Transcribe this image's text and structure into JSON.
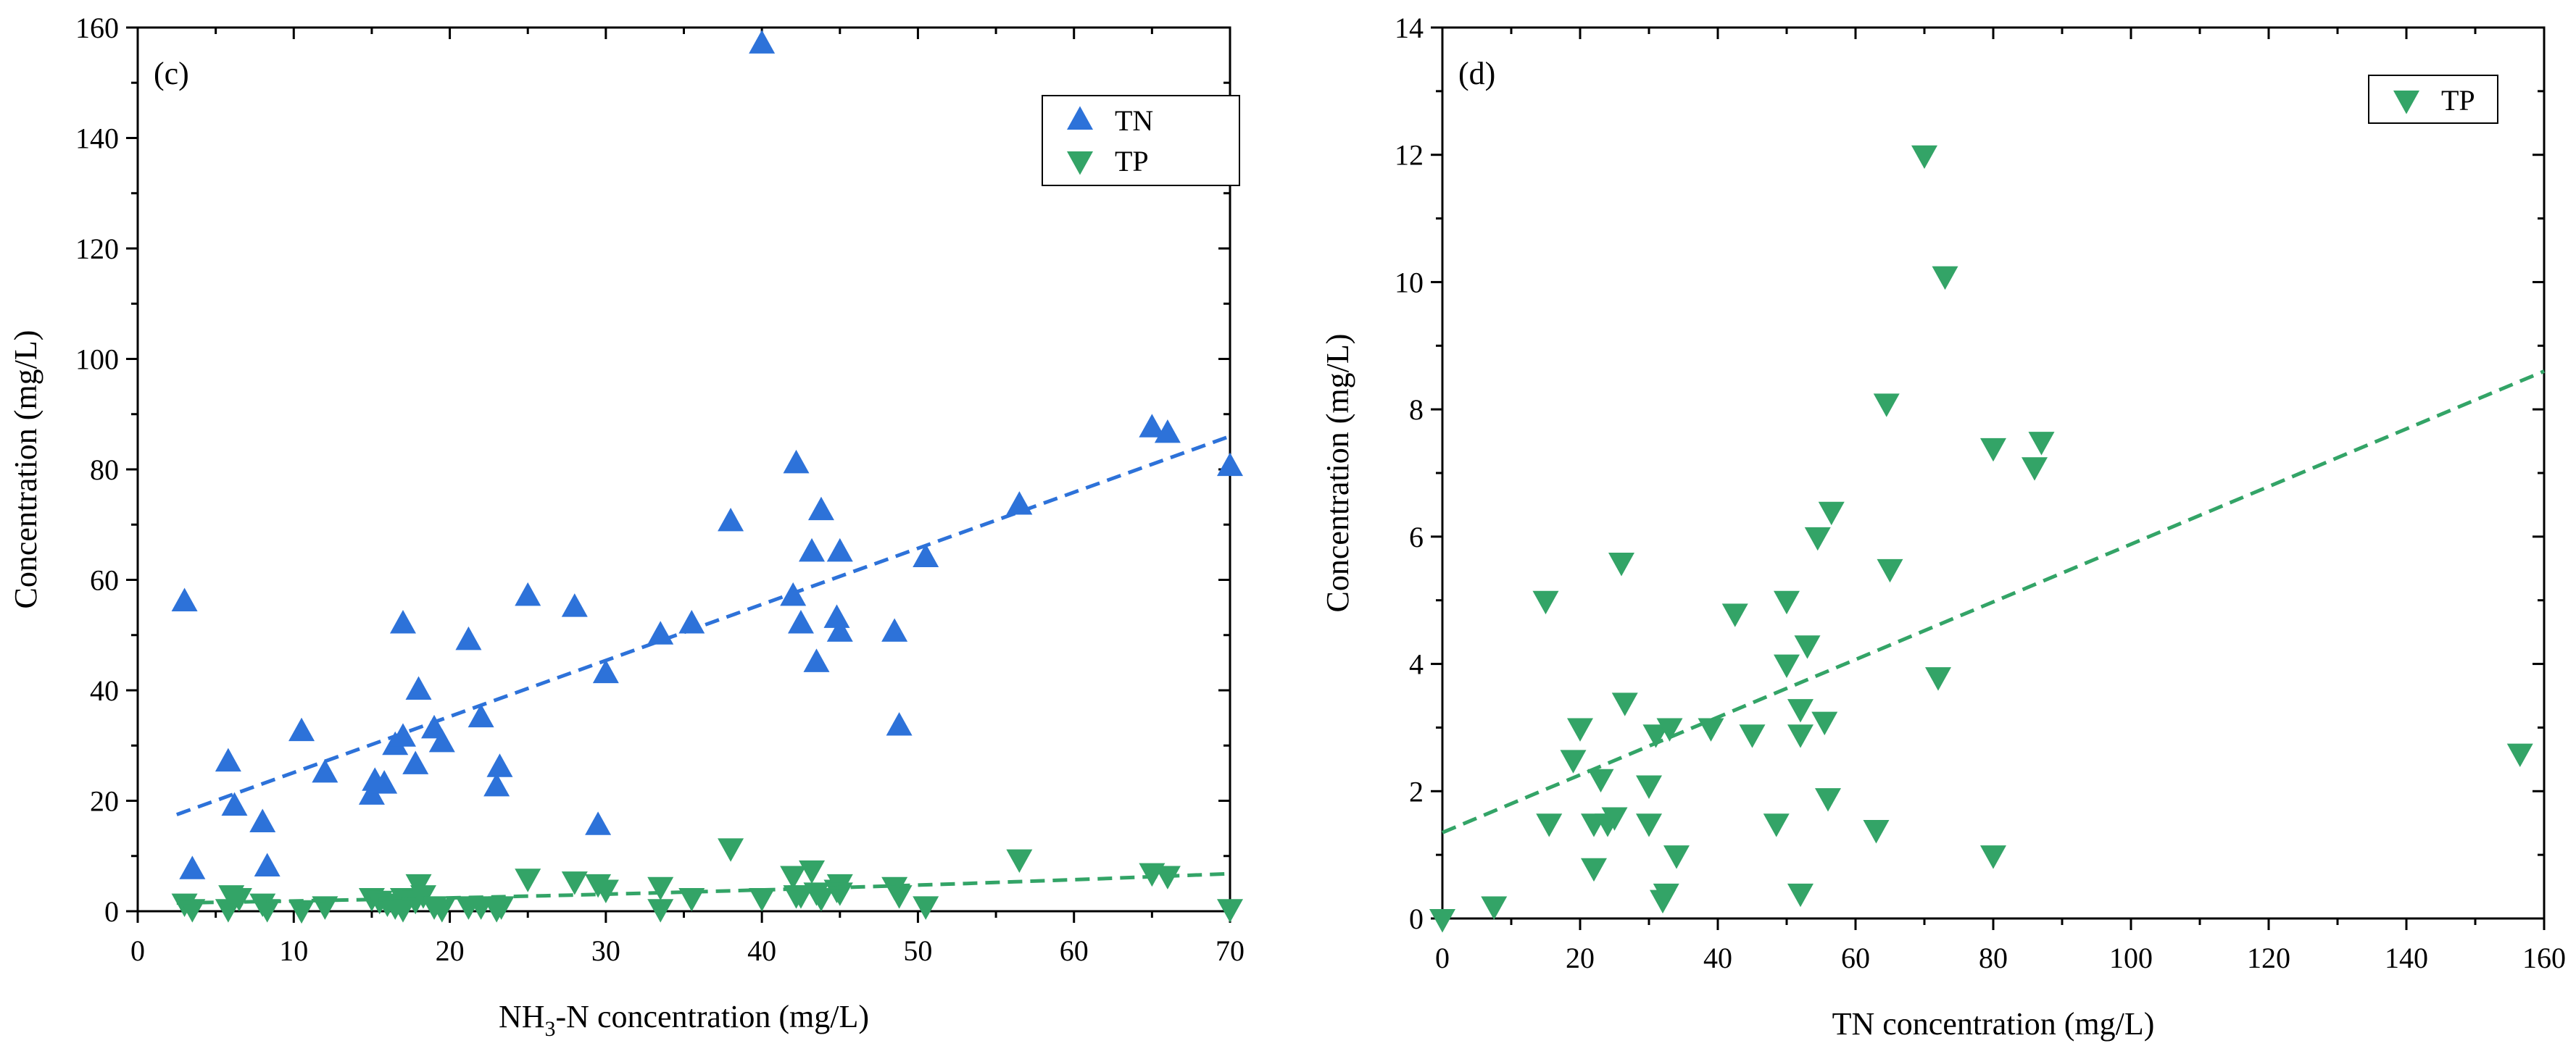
{
  "chart_data": [
    {
      "type": "scatter",
      "panel_label": "(c)",
      "xlabel_parts": [
        "NH",
        "3",
        "-N concentration (mg/L)"
      ],
      "ylabel": "Concentration (mg/L)",
      "xlim": [
        0,
        70
      ],
      "ylim": [
        0,
        160
      ],
      "xticks": [
        0,
        10,
        20,
        30,
        40,
        50,
        60,
        70
      ],
      "yticks": [
        0,
        20,
        40,
        60,
        80,
        100,
        120,
        140,
        160
      ],
      "grid": false,
      "legend_position": "top-right",
      "series": [
        {
          "name": "TN",
          "marker": "triangle-up",
          "color": "#2d72d9",
          "points": [
            [
              3,
              56
            ],
            [
              3.5,
              7.5
            ],
            [
              5.8,
              27
            ],
            [
              6.2,
              19
            ],
            [
              8,
              16
            ],
            [
              8.3,
              8
            ],
            [
              10.5,
              32.5
            ],
            [
              12,
              25
            ],
            [
              15,
              21
            ],
            [
              15.2,
              23.5
            ],
            [
              15.8,
              23
            ],
            [
              16.5,
              30
            ],
            [
              17,
              31.5
            ],
            [
              17,
              52
            ],
            [
              17.8,
              26.5
            ],
            [
              18,
              40
            ],
            [
              19,
              33
            ],
            [
              19.5,
              30.5
            ],
            [
              21.2,
              49
            ],
            [
              22,
              35
            ],
            [
              23,
              22.5
            ],
            [
              23.2,
              26
            ],
            [
              25,
              57
            ],
            [
              28,
              55
            ],
            [
              29.5,
              15.5
            ],
            [
              30,
              43
            ],
            [
              33.5,
              50
            ],
            [
              35.5,
              52
            ],
            [
              38,
              70.5
            ],
            [
              40,
              157
            ],
            [
              42,
              57
            ],
            [
              42.2,
              81
            ],
            [
              42.5,
              52
            ],
            [
              43.2,
              65
            ],
            [
              43.5,
              45
            ],
            [
              43.8,
              72.5
            ],
            [
              44.8,
              53
            ],
            [
              45,
              50.5
            ],
            [
              45,
              65
            ],
            [
              48.5,
              50.5
            ],
            [
              48.8,
              33.5
            ],
            [
              50.5,
              64
            ],
            [
              56.5,
              73.5
            ],
            [
              65,
              87.5
            ],
            [
              66,
              86.5
            ],
            [
              70,
              80.5
            ]
          ]
        },
        {
          "name": "TP",
          "marker": "triangle-down",
          "color": "#33a467",
          "points": [
            [
              3,
              1.5
            ],
            [
              3.5,
              0.5
            ],
            [
              5.8,
              0.5
            ],
            [
              6,
              3
            ],
            [
              6.5,
              2.5
            ],
            [
              8,
              1.5
            ],
            [
              8.3,
              0.5
            ],
            [
              10.5,
              0.3
            ],
            [
              12,
              1
            ],
            [
              15,
              2.5
            ],
            [
              15.5,
              2
            ],
            [
              16,
              1.5
            ],
            [
              16.5,
              1
            ],
            [
              17,
              2.5
            ],
            [
              17,
              0.5
            ],
            [
              17.8,
              2
            ],
            [
              18,
              5
            ],
            [
              18.3,
              3
            ],
            [
              19,
              1
            ],
            [
              19.5,
              0.5
            ],
            [
              21.2,
              1
            ],
            [
              22,
              1
            ],
            [
              23,
              0.5
            ],
            [
              23.3,
              1
            ],
            [
              25,
              6
            ],
            [
              28,
              5.5
            ],
            [
              29.5,
              5
            ],
            [
              30,
              4
            ],
            [
              33.5,
              0.5
            ],
            [
              33.5,
              4.5
            ],
            [
              35.5,
              2.5
            ],
            [
              38,
              11.5
            ],
            [
              40,
              2.5
            ],
            [
              42,
              6.5
            ],
            [
              42.2,
              3
            ],
            [
              42.5,
              3
            ],
            [
              43.2,
              7.5
            ],
            [
              43.5,
              3.5
            ],
            [
              43.8,
              2.5
            ],
            [
              44.8,
              4
            ],
            [
              45,
              5
            ],
            [
              45,
              3.5
            ],
            [
              48.5,
              4.5
            ],
            [
              48.8,
              3
            ],
            [
              50.5,
              1
            ],
            [
              56.5,
              9.5
            ],
            [
              65,
              7
            ],
            [
              66,
              6.5
            ],
            [
              70,
              0.5
            ]
          ]
        }
      ],
      "fit_lines": [
        {
          "series": "TN",
          "x": [
            2.5,
            70
          ],
          "y": [
            17.5,
            86
          ],
          "style": "dashed"
        },
        {
          "series": "TP",
          "x": [
            2.5,
            70
          ],
          "y": [
            1.5,
            6.8
          ],
          "style": "dashed",
          "curve": true
        }
      ]
    },
    {
      "type": "scatter",
      "panel_label": "(d)",
      "xlabel": "TN concentration (mg/L)",
      "ylabel": "Concentration (mg/L)",
      "xlim": [
        0,
        160
      ],
      "ylim": [
        0,
        14
      ],
      "xticks": [
        0,
        20,
        40,
        60,
        80,
        100,
        120,
        140,
        160
      ],
      "yticks": [
        0,
        2,
        4,
        6,
        8,
        10,
        12,
        14
      ],
      "grid": false,
      "legend_position": "top-right",
      "series": [
        {
          "name": "TP",
          "marker": "triangle-down",
          "color": "#33a467",
          "points": [
            [
              0,
              0
            ],
            [
              7.5,
              0.2
            ],
            [
              15,
              5
            ],
            [
              15.5,
              1.5
            ],
            [
              19,
              2.5
            ],
            [
              20,
              3
            ],
            [
              22,
              1.5
            ],
            [
              22,
              0.8
            ],
            [
              23,
              2.2
            ],
            [
              24,
              1.5
            ],
            [
              25,
              1.6
            ],
            [
              26,
              5.6
            ],
            [
              26.5,
              3.4
            ],
            [
              30,
              2.1
            ],
            [
              30,
              1.5
            ],
            [
              31,
              2.9
            ],
            [
              32,
              0.3
            ],
            [
              32.5,
              0.4
            ],
            [
              33,
              3
            ],
            [
              34,
              1
            ],
            [
              39,
              3
            ],
            [
              42.5,
              4.8
            ],
            [
              45,
              2.9
            ],
            [
              48.5,
              1.5
            ],
            [
              50,
              5
            ],
            [
              50,
              4
            ],
            [
              52,
              3.3
            ],
            [
              52,
              2.9
            ],
            [
              52,
              0.4
            ],
            [
              53,
              4.3
            ],
            [
              54.5,
              6
            ],
            [
              55.5,
              3.1
            ],
            [
              56,
              1.9
            ],
            [
              56.5,
              6.4
            ],
            [
              63,
              1.4
            ],
            [
              64.5,
              8.1
            ],
            [
              65,
              5.5
            ],
            [
              70,
              12
            ],
            [
              72,
              3.8
            ],
            [
              73,
              10.1
            ],
            [
              80,
              7.4
            ],
            [
              80,
              1
            ],
            [
              86,
              7.1
            ],
            [
              87,
              7.5
            ],
            [
              156.5,
              2.6
            ]
          ]
        }
      ],
      "fit_lines": [
        {
          "series": "TP",
          "x": [
            0,
            160
          ],
          "y": [
            1.35,
            8.6
          ],
          "style": "dashed"
        }
      ]
    }
  ]
}
